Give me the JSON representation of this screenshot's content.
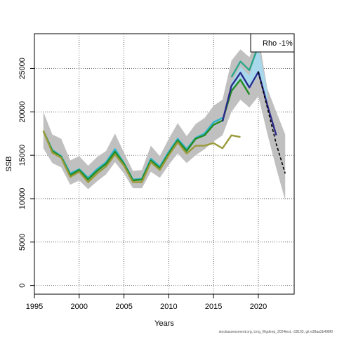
{
  "chart_data": {
    "type": "line",
    "xlabel": "Years",
    "ylabel": "SSB",
    "xlim": [
      1995,
      2024
    ],
    "ylim": [
      -1000,
      29000
    ],
    "x_ticks": [
      1995,
      2000,
      2005,
      2010,
      2015,
      2020
    ],
    "y_ticks": [
      0,
      5000,
      10000,
      15000,
      20000,
      25000
    ],
    "grid": true,
    "legend": {
      "placement": "top-right",
      "text": "Rho -1%"
    },
    "ci_band_outer": {
      "color": "#c0c0c0",
      "x": [
        1996,
        1997,
        1998,
        1999,
        2000,
        2001,
        2002,
        2003,
        2004,
        2005,
        2006,
        2007,
        2008,
        2009,
        2010,
        2011,
        2012,
        2013,
        2014,
        2015,
        2016,
        2017,
        2018,
        2019,
        2020,
        2021,
        2022,
        2023
      ],
      "lower": [
        15800,
        14100,
        13600,
        11600,
        12100,
        11100,
        12000,
        12800,
        14200,
        12900,
        11200,
        11200,
        13100,
        12400,
        13900,
        15200,
        14100,
        15000,
        15700,
        16600,
        17300,
        20000,
        21400,
        20500,
        21800,
        17500,
        13500,
        9800
      ],
      "upper": [
        20000,
        17400,
        16900,
        14400,
        14900,
        13800,
        14800,
        15500,
        17500,
        15300,
        13200,
        13300,
        16100,
        14900,
        16900,
        18700,
        17200,
        18600,
        19300,
        20700,
        21400,
        25900,
        27200,
        26300,
        28800,
        22700,
        20000,
        17400
      ]
    },
    "ci_band_retro": {
      "color": "#a8d8ec",
      "x": [
        2016,
        2017,
        2018,
        2019,
        2020,
        2021
      ],
      "lower": [
        18600,
        22400,
        23600,
        22600,
        24200,
        20800
      ],
      "upper": [
        18900,
        23400,
        25200,
        24200,
        27600,
        22400
      ]
    },
    "series": [
      {
        "name": "",
        "color": "#28b4c8",
        "values": [
          [
            1996,
            17800
          ],
          [
            1997,
            15600
          ],
          [
            1998,
            14900
          ],
          [
            1999,
            12900
          ],
          [
            2000,
            13400
          ],
          [
            2001,
            12400
          ],
          [
            2002,
            13400
          ],
          [
            2003,
            14200
          ],
          [
            2004,
            15700
          ],
          [
            2005,
            14100
          ],
          [
            2006,
            12200
          ],
          [
            2007,
            12300
          ],
          [
            2008,
            14600
          ],
          [
            2009,
            13700
          ],
          [
            2010,
            15400
          ],
          [
            2011,
            16900
          ],
          [
            2012,
            15700
          ],
          [
            2013,
            17000
          ],
          [
            2014,
            17500
          ],
          [
            2015,
            18800
          ],
          [
            2016,
            19300
          ]
        ]
      },
      {
        "name": "",
        "color": "#2aa68a",
        "values": [
          [
            2017,
            24000
          ],
          [
            2018,
            25800
          ],
          [
            2019,
            24800
          ],
          [
            2020,
            27600
          ]
        ]
      },
      {
        "name": "",
        "color": "#228b22",
        "values": [
          [
            1996,
            17800
          ],
          [
            1997,
            15500
          ],
          [
            1998,
            14800
          ],
          [
            1999,
            12700
          ],
          [
            2000,
            13300
          ],
          [
            2001,
            12200
          ],
          [
            2002,
            13200
          ],
          [
            2003,
            14000
          ],
          [
            2004,
            15400
          ],
          [
            2005,
            14000
          ],
          [
            2006,
            12100
          ],
          [
            2007,
            12200
          ],
          [
            2008,
            14400
          ],
          [
            2009,
            13500
          ],
          [
            2010,
            15200
          ],
          [
            2011,
            16700
          ],
          [
            2012,
            15500
          ],
          [
            2013,
            16900
          ],
          [
            2014,
            17300
          ],
          [
            2015,
            18500
          ],
          [
            2016,
            19000
          ],
          [
            2017,
            22400
          ],
          [
            2018,
            23700
          ],
          [
            2019,
            22000
          ]
        ]
      },
      {
        "name": "",
        "color": "#2b2a8a",
        "values": [
          [
            2016,
            18900
          ],
          [
            2017,
            23000
          ],
          [
            2018,
            24500
          ],
          [
            2019,
            22800
          ],
          [
            2020,
            24600
          ],
          [
            2021,
            20800
          ],
          [
            2022,
            17300
          ]
        ]
      },
      {
        "name": "",
        "color": "#9a9a3a",
        "values": [
          [
            1996,
            17800
          ],
          [
            1997,
            15300
          ],
          [
            1998,
            14700
          ],
          [
            1999,
            12500
          ],
          [
            2000,
            13100
          ],
          [
            2001,
            11900
          ],
          [
            2002,
            12900
          ],
          [
            2003,
            13700
          ],
          [
            2004,
            15100
          ],
          [
            2005,
            13800
          ],
          [
            2006,
            11900
          ],
          [
            2007,
            11900
          ],
          [
            2008,
            14200
          ],
          [
            2009,
            13300
          ],
          [
            2010,
            15000
          ],
          [
            2011,
            16500
          ],
          [
            2012,
            15200
          ],
          [
            2013,
            16100
          ],
          [
            2014,
            16100
          ],
          [
            2015,
            16400
          ],
          [
            2016,
            15800
          ],
          [
            2017,
            17300
          ],
          [
            2018,
            17100
          ]
        ]
      },
      {
        "name": "",
        "color": "#000000",
        "dashed": true,
        "values": [
          [
            2020,
            24600
          ],
          [
            2021,
            20500
          ],
          [
            2022,
            16300
          ],
          [
            2023,
            12900
          ]
        ]
      }
    ]
  },
  "footer": {
    "text": "stockassessment.org, Ling_Wgdeep_2024test, r18103, git e38aa2b498f0"
  }
}
